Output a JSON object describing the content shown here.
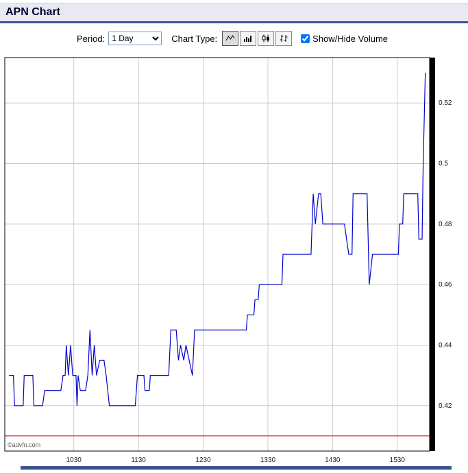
{
  "header": {
    "title": "APN Chart"
  },
  "controls": {
    "period_label": "Period:",
    "period_options": [
      "1 Day"
    ],
    "period_value": "1 Day",
    "chart_type_label": "Chart Type:",
    "chart_type_icons": [
      "line-chart-icon",
      "bar-chart-icon",
      "candlestick-chart-icon",
      "ohlc-chart-icon"
    ],
    "volume_label": "Show/Hide Volume",
    "volume_checked": true
  },
  "chart_data": {
    "type": "line",
    "title": "",
    "x_unit": "minutes from 09:30",
    "x_range": [
      -4,
      390
    ],
    "y_range": [
      0.405,
      0.535
    ],
    "x_ticks": [
      {
        "t": 60,
        "label": "1030"
      },
      {
        "t": 120,
        "label": "1130"
      },
      {
        "t": 180,
        "label": "1230"
      },
      {
        "t": 240,
        "label": "1330"
      },
      {
        "t": 300,
        "label": "1430"
      },
      {
        "t": 360,
        "label": "1530"
      }
    ],
    "y_ticks": [
      {
        "v": 0.42,
        "label": "0.42"
      },
      {
        "v": 0.44,
        "label": "0.44"
      },
      {
        "v": 0.46,
        "label": "0.46"
      },
      {
        "v": 0.48,
        "label": "0.48"
      },
      {
        "v": 0.5,
        "label": "0.5"
      },
      {
        "v": 0.52,
        "label": "0.52"
      }
    ],
    "red_line": 0.41,
    "red_line_color": "#cc0000",
    "grid_color": "#cccccc",
    "axis_color": "#000000",
    "watermark": "©advfn.com",
    "series": [
      {
        "name": "APN",
        "color": "#0000cc",
        "points": [
          [
            0,
            0.43
          ],
          [
            4,
            0.43
          ],
          [
            5,
            0.42
          ],
          [
            13,
            0.42
          ],
          [
            14,
            0.43
          ],
          [
            22,
            0.43
          ],
          [
            23,
            0.42
          ],
          [
            31,
            0.42
          ],
          [
            33,
            0.425
          ],
          [
            48,
            0.425
          ],
          [
            50,
            0.43
          ],
          [
            52,
            0.43
          ],
          [
            53,
            0.44
          ],
          [
            55,
            0.43
          ],
          [
            57,
            0.44
          ],
          [
            59,
            0.43
          ],
          [
            62,
            0.43
          ],
          [
            63,
            0.42
          ],
          [
            64,
            0.43
          ],
          [
            66,
            0.425
          ],
          [
            71,
            0.425
          ],
          [
            73,
            0.43
          ],
          [
            75,
            0.445
          ],
          [
            77,
            0.43
          ],
          [
            79,
            0.44
          ],
          [
            81,
            0.43
          ],
          [
            84,
            0.435
          ],
          [
            88,
            0.435
          ],
          [
            90,
            0.43
          ],
          [
            93,
            0.42
          ],
          [
            117,
            0.42
          ],
          [
            119,
            0.43
          ],
          [
            125,
            0.43
          ],
          [
            126,
            0.425
          ],
          [
            130,
            0.425
          ],
          [
            131,
            0.43
          ],
          [
            148,
            0.43
          ],
          [
            150,
            0.445
          ],
          [
            155,
            0.445
          ],
          [
            157,
            0.435
          ],
          [
            159,
            0.44
          ],
          [
            162,
            0.435
          ],
          [
            164,
            0.44
          ],
          [
            167,
            0.435
          ],
          [
            170,
            0.43
          ],
          [
            172,
            0.445
          ],
          [
            220,
            0.445
          ],
          [
            221,
            0.45
          ],
          [
            227,
            0.45
          ],
          [
            228,
            0.455
          ],
          [
            231,
            0.455
          ],
          [
            232,
            0.46
          ],
          [
            253,
            0.46
          ],
          [
            254,
            0.47
          ],
          [
            280,
            0.47
          ],
          [
            282,
            0.49
          ],
          [
            284,
            0.48
          ],
          [
            287,
            0.49
          ],
          [
            289,
            0.49
          ],
          [
            291,
            0.48
          ],
          [
            311,
            0.48
          ],
          [
            313,
            0.475
          ],
          [
            315,
            0.47
          ],
          [
            318,
            0.47
          ],
          [
            319,
            0.49
          ],
          [
            332,
            0.49
          ],
          [
            334,
            0.46
          ],
          [
            337,
            0.47
          ],
          [
            361,
            0.47
          ],
          [
            362,
            0.48
          ],
          [
            365,
            0.48
          ],
          [
            366,
            0.49
          ],
          [
            379,
            0.49
          ],
          [
            380,
            0.475
          ],
          [
            383,
            0.475
          ],
          [
            384,
            0.5
          ],
          [
            386,
            0.53
          ]
        ]
      }
    ]
  },
  "colors": {
    "header_bg": "#e9e9f1",
    "header_border": "#3a5291",
    "title_color": "#000033",
    "bottom_strip": "#3a5291"
  }
}
